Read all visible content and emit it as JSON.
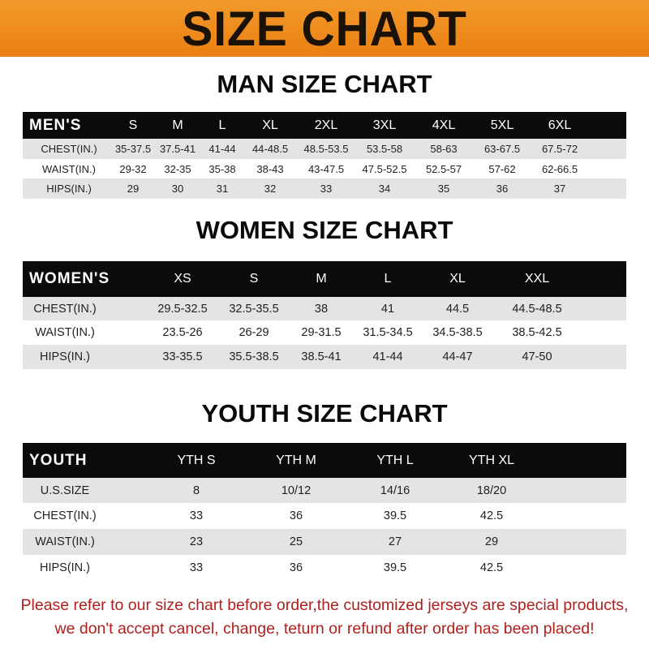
{
  "banner_title": "SIZE CHART",
  "colors": {
    "banner": "#ef8a1c",
    "header_row": "#0b0b0b",
    "stripe": "#e4e4e4",
    "notice": "#b0201e"
  },
  "men": {
    "title": "MAN SIZE CHART",
    "columns": [
      "MEN'S",
      "S",
      "M",
      "L",
      "XL",
      "2XL",
      "3XL",
      "4XL",
      "5XL",
      "6XL"
    ],
    "rows": [
      [
        "CHEST(IN.)",
        "35-37.5",
        "37.5-41",
        "41-44",
        "44-48.5",
        "48.5-53.5",
        "53.5-58",
        "58-63",
        "63-67.5",
        "67.5-72"
      ],
      [
        "WAIST(IN.)",
        "29-32",
        "32-35",
        "35-38",
        "38-43",
        "43-47.5",
        "47.5-52.5",
        "52.5-57",
        "57-62",
        "62-66.5"
      ],
      [
        "HIPS(IN.)",
        "29",
        "30",
        "31",
        "32",
        "33",
        "34",
        "35",
        "36",
        "37"
      ]
    ]
  },
  "women": {
    "title": "WOMEN SIZE CHART",
    "columns": [
      "WOMEN'S",
      "XS",
      "S",
      "M",
      "L",
      "XL",
      "XXL"
    ],
    "rows": [
      [
        "CHEST(IN.)",
        "29.5-32.5",
        "32.5-35.5",
        "38",
        "41",
        "44.5",
        "44.5-48.5"
      ],
      [
        "WAIST(IN.)",
        "23.5-26",
        "26-29",
        "29-31.5",
        "31.5-34.5",
        "34.5-38.5",
        "38.5-42.5"
      ],
      [
        "HIPS(IN.)",
        "33-35.5",
        "35.5-38.5",
        "38.5-41",
        "41-44",
        "44-47",
        "47-50"
      ]
    ]
  },
  "youth": {
    "title": "YOUTH SIZE CHART",
    "columns": [
      "YOUTH",
      "YTH S",
      "YTH M",
      "YTH L",
      "YTH XL"
    ],
    "rows": [
      [
        "U.S.SIZE",
        "8",
        "10/12",
        "14/16",
        "18/20"
      ],
      [
        "CHEST(IN.)",
        "33",
        "36",
        "39.5",
        "42.5"
      ],
      [
        "WAIST(IN.)",
        "23",
        "25",
        "27",
        "29"
      ],
      [
        "HIPS(IN.)",
        "33",
        "36",
        "39.5",
        "42.5"
      ]
    ]
  },
  "notice": {
    "line1": "Please refer to our size chart before order,the customized jerseys are special products,",
    "line2": "we don't accept cancel, change, teturn or refund after order has been placed!"
  }
}
